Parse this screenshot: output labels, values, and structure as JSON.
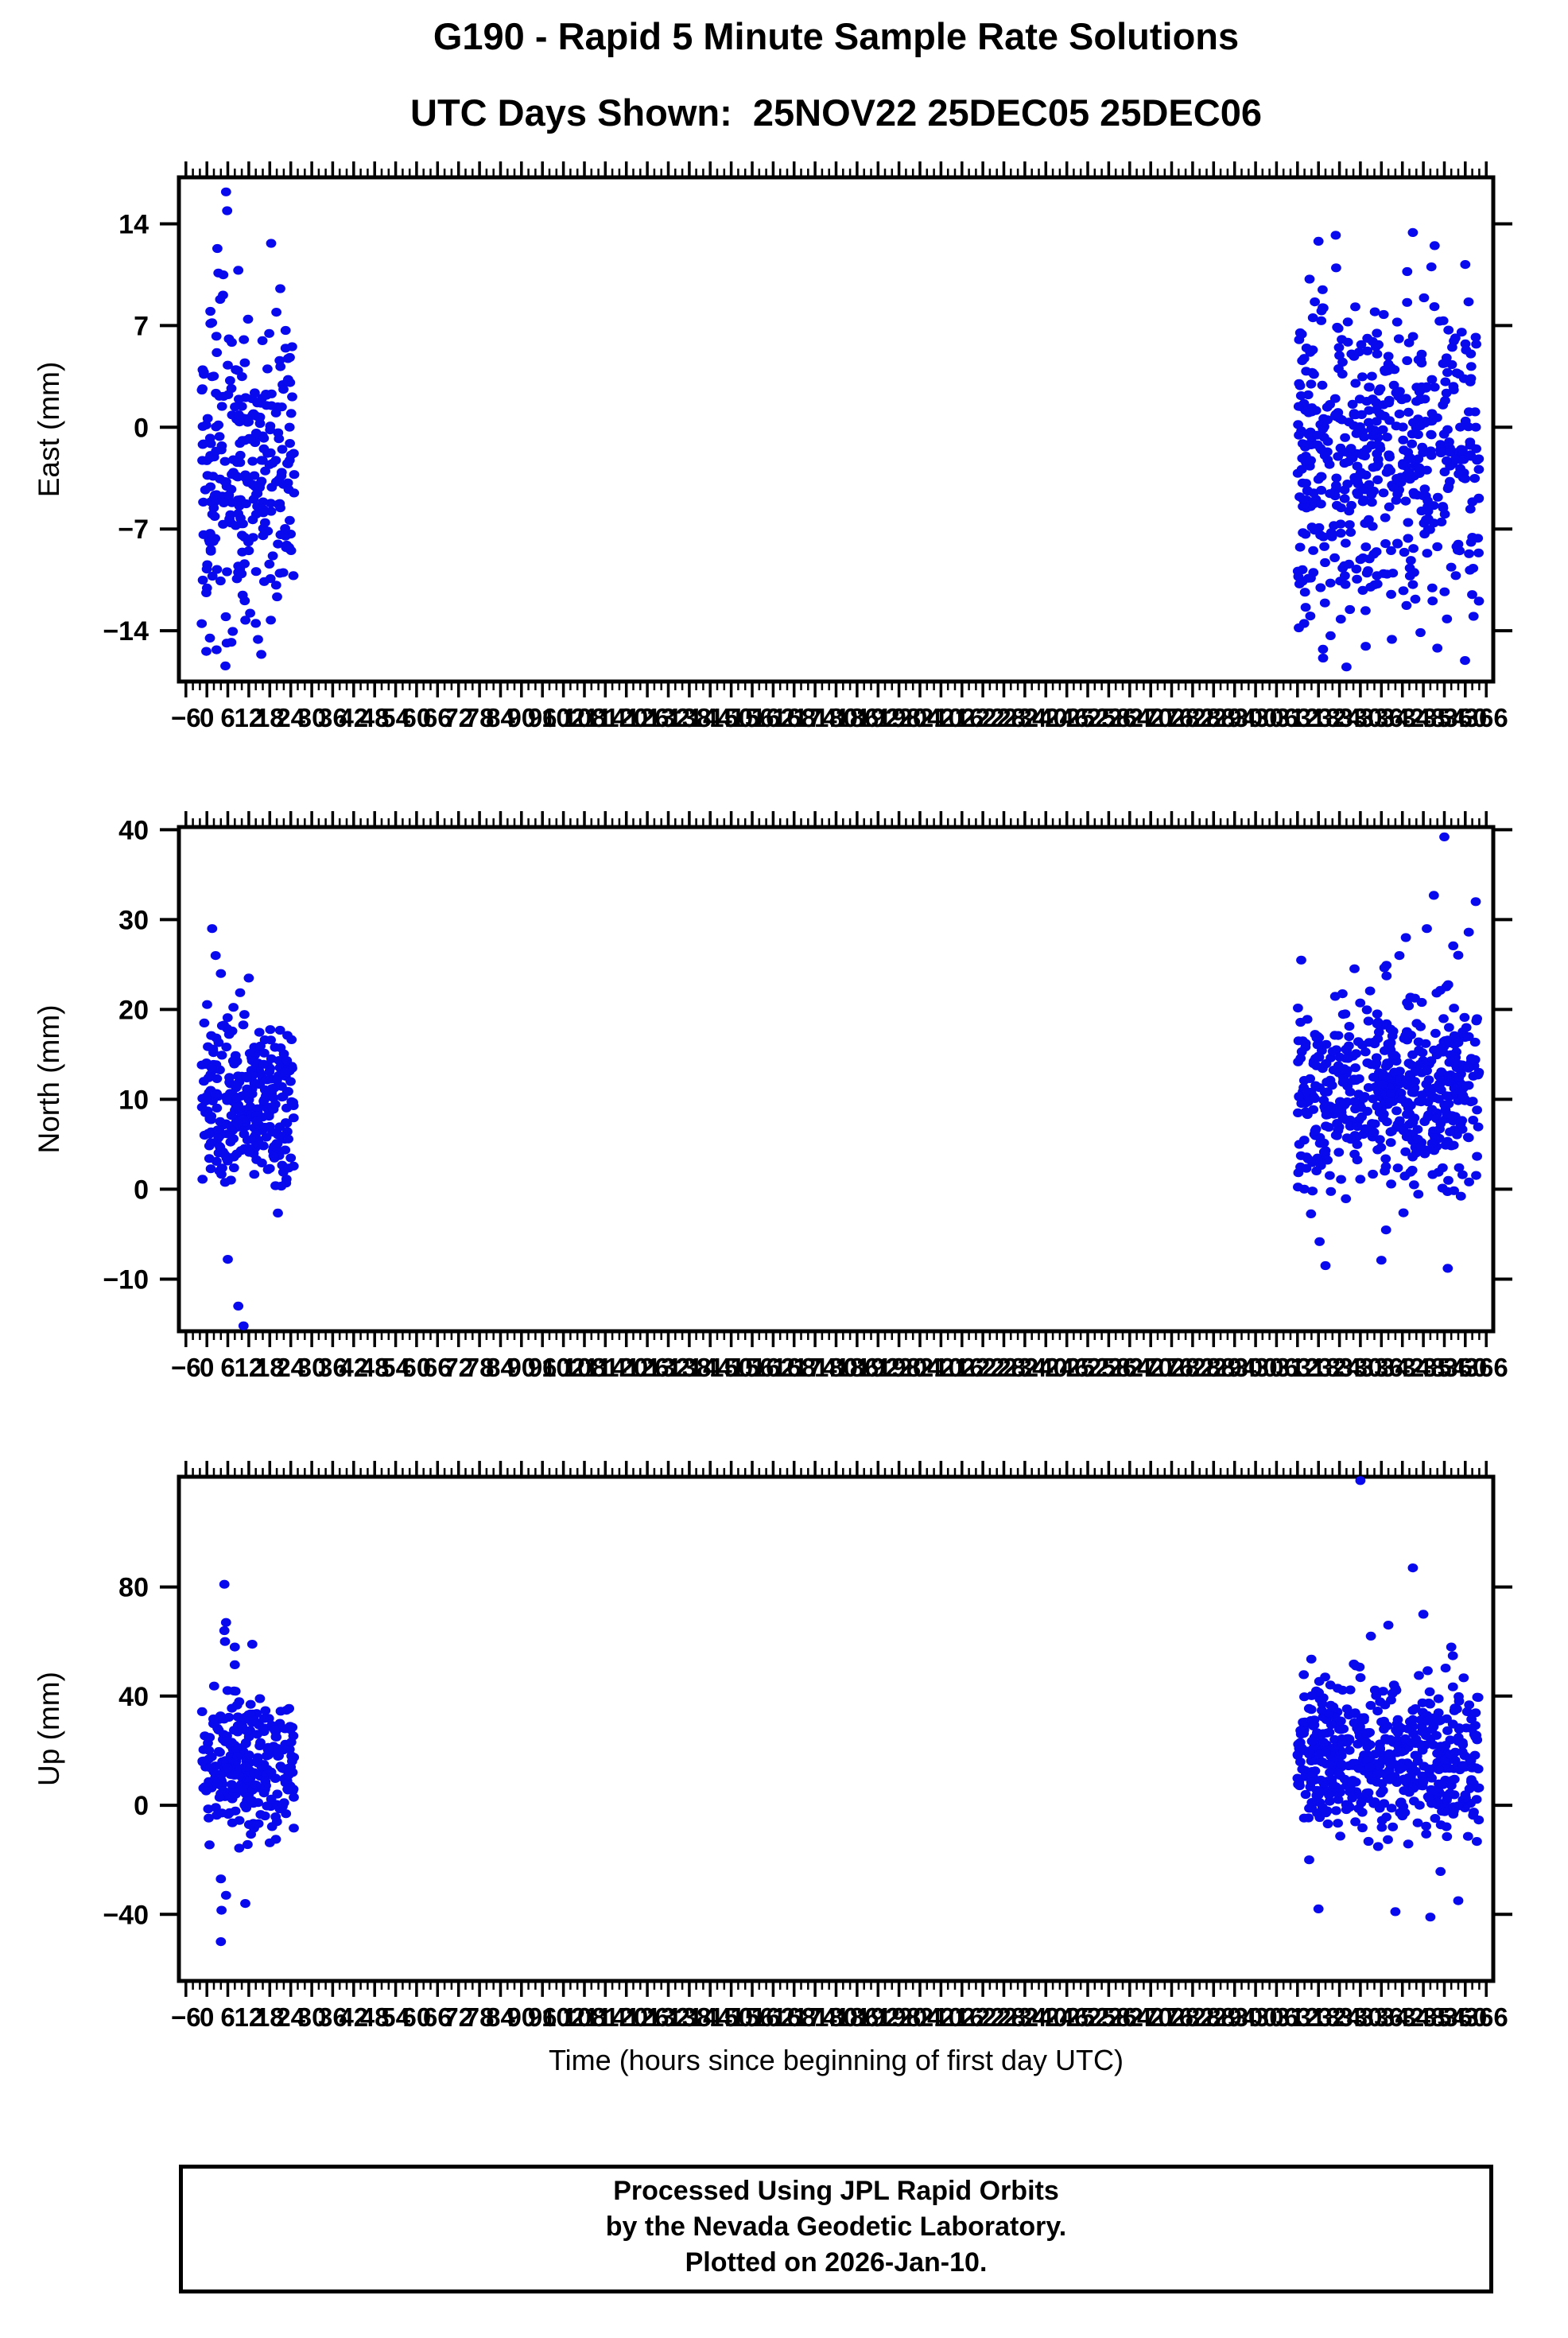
{
  "header": {
    "title_line1": "G190 - Rapid 5 Minute Sample Rate Solutions",
    "title_line2": "UTC Days Shown:  25NOV22 25DEC05 25DEC06"
  },
  "footer": {
    "line1": "Processed Using JPL Rapid Orbits",
    "line2": "by the Nevada Geodetic Laboratory.",
    "line3": "Plotted on 2026-Jan-10."
  },
  "chart_data": {
    "type": "scatter",
    "title": "G190 - Rapid 5 Minute Sample Rate Solutions",
    "subtitle": "UTC Days Shown:  25NOV22 25DEC05 25DEC06",
    "station": "G190",
    "days": [
      "25NOV22",
      "25DEC05",
      "25DEC06"
    ],
    "xlabel": "Time (hours since beginning of first day UTC)",
    "point_color": "#0909ee",
    "grid": false,
    "legend": false,
    "x_axis": {
      "range": [
        -8,
        368
      ],
      "tick_start": -6,
      "tick_end": 366,
      "tick_step": 6,
      "minor_step": 2,
      "tick_labels": [
        "−6",
        "0",
        "6",
        "12",
        "18",
        "24",
        "30",
        "36",
        "42",
        "48",
        "54",
        "60",
        "66",
        "72",
        "78",
        "84",
        "90",
        "96",
        "102",
        "108",
        "114",
        "120",
        "126",
        "132",
        "138",
        "144",
        "150",
        "156",
        "162",
        "168",
        "174",
        "180",
        "186",
        "192",
        "198",
        "204",
        "210",
        "216",
        "222",
        "228",
        "234",
        "240",
        "246",
        "252",
        "258",
        "264",
        "270",
        "276",
        "282",
        "288",
        "294",
        "300",
        "306",
        "312",
        "318",
        "324",
        "330",
        "336",
        "342",
        "348",
        "354",
        "360",
        "366"
      ]
    },
    "subplots": [
      {
        "name": "east",
        "ylabel": "East (mm)",
        "y_range": [
          -17.5,
          17.2
        ],
        "y_ticks": [
          14,
          7,
          0,
          -7,
          -14
        ],
        "y_tick_labels": [
          "14",
          "7",
          "0",
          "−7",
          "−14"
        ],
        "clusters": [
          {
            "label": "25NOV22",
            "x_range": [
              -1.5,
              25
            ],
            "n": 290,
            "y_mean": -3.0,
            "y_std": 5.4,
            "y_clip": [
              -16.8,
              13.0
            ],
            "seed": 11,
            "outliers": [
              [
                5.5,
                16.2
              ],
              [
                5.8,
                14.9
              ],
              [
                3.0,
                12.3
              ],
              [
                9.0,
                10.8
              ],
              [
                14.0,
                -13.5
              ],
              [
                7.0,
                -14.8
              ]
            ]
          },
          {
            "label": "25DEC05-06",
            "x_range": [
              312,
              364
            ],
            "n": 540,
            "y_mean": -1.8,
            "y_std": 5.4,
            "y_clip": [
              -16.8,
              13.6
            ],
            "seed": 12,
            "outliers": [
              [
                318,
                12.8
              ],
              [
                345,
                13.4
              ],
              [
                360,
                11.2
              ],
              [
                326,
                -16.5
              ],
              [
                352,
                -15.2
              ],
              [
                339,
                -14.6
              ]
            ]
          }
        ]
      },
      {
        "name": "north",
        "ylabel": "North (mm)",
        "y_range": [
          -15.8,
          40.3
        ],
        "y_ticks": [
          40,
          30,
          20,
          10,
          0,
          -10
        ],
        "y_tick_labels": [
          "40",
          "30",
          "20",
          "10",
          "0",
          "−10"
        ],
        "clusters": [
          {
            "label": "25NOV22",
            "x_range": [
              -1.5,
              25
            ],
            "n": 290,
            "y_mean": 9.5,
            "y_std": 5.0,
            "y_clip": [
              -7.5,
              22.5
            ],
            "seed": 21,
            "outliers": [
              [
                1.5,
                29.0
              ],
              [
                2.5,
                26.0
              ],
              [
                4.0,
                24.0
              ],
              [
                12.0,
                23.5
              ],
              [
                9.0,
                -13.0
              ],
              [
                10.5,
                -15.2
              ],
              [
                6.0,
                -7.8
              ]
            ]
          },
          {
            "label": "25DEC05-06",
            "x_range": [
              312,
              364
            ],
            "n": 540,
            "y_mean": 11.0,
            "y_std": 5.4,
            "y_clip": [
              -6.5,
              27.5
            ],
            "seed": 22,
            "outliers": [
              [
                354,
                39.2
              ],
              [
                351,
                32.7
              ],
              [
                363,
                32.0
              ],
              [
                349,
                29.0
              ],
              [
                361,
                28.6
              ],
              [
                343,
                28.0
              ],
              [
                355,
                -8.8
              ],
              [
                320,
                -8.5
              ],
              [
                336,
                -7.9
              ]
            ]
          }
        ]
      },
      {
        "name": "up",
        "ylabel": "Up (mm)",
        "y_range": [
          -64.4,
          120.4
        ],
        "y_ticks": [
          80,
          40,
          0,
          -40
        ],
        "y_tick_labels": [
          "80",
          "40",
          "0",
          "−40"
        ],
        "clusters": [
          {
            "label": "25NOV22",
            "x_range": [
              -1.5,
              25
            ],
            "n": 280,
            "y_mean": 15.0,
            "y_std": 13.0,
            "y_clip": [
              -18,
              52
            ],
            "seed": 31,
            "outliers": [
              [
                5.0,
                81.0
              ],
              [
                5.5,
                67.0
              ],
              [
                5.0,
                64.0
              ],
              [
                5.2,
                60.0
              ],
              [
                8.0,
                58.0
              ],
              [
                13.0,
                59.0
              ],
              [
                4.0,
                -27.0
              ],
              [
                5.5,
                -33.0
              ],
              [
                4.2,
                -38.5
              ],
              [
                11.0,
                -36.0
              ],
              [
                4.0,
                -50.0
              ]
            ]
          },
          {
            "label": "25DEC05-06",
            "x_range": [
              312,
              364
            ],
            "n": 540,
            "y_mean": 18.0,
            "y_std": 13.5,
            "y_clip": [
              -28,
              55
            ],
            "seed": 32,
            "outliers": [
              [
                330,
                119.0
              ],
              [
                345,
                87.0
              ],
              [
                348,
                70.0
              ],
              [
                338,
                66.0
              ],
              [
                333,
                62.0
              ],
              [
                356,
                58.0
              ],
              [
                340,
                -39.0
              ],
              [
                318,
                -38.0
              ],
              [
                350,
                -41.0
              ],
              [
                358,
                -35.0
              ]
            ]
          }
        ]
      }
    ],
    "layout": {
      "plot_left": 225,
      "plot_right": 1878,
      "subplot_tops": [
        223,
        1040,
        1857
      ],
      "subplot_height": 634,
      "svg_tops": [
        163,
        980,
        1797
      ],
      "svg_plot_top_offset": 60,
      "major_tick_len": 20,
      "minor_tick_len": 11,
      "y_tick_len": 24,
      "point_rx": 6.4,
      "point_ry": 5.6
    }
  }
}
